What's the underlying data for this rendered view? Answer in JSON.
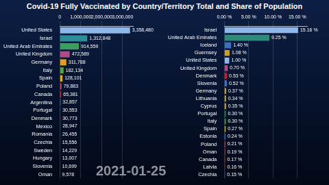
{
  "title": "Covid-19 Fully Vaccinated by Country/Territory Total and Share of Population",
  "annotation": "2021-01-25",
  "chart_data": [
    {
      "type": "bar",
      "orientation": "horizontal",
      "grid": true,
      "data_labels": true,
      "categories": [
        "United States",
        "Israel",
        "United Arab Emirates",
        "United Kingdom",
        "Germany",
        "Italy",
        "Spain",
        "Poland",
        "Canada",
        "Argentina",
        "Portugal",
        "Denmark",
        "Mexico",
        "Romania",
        "Czechia",
        "Sweden",
        "Hungary",
        "Slovenia",
        "Oman"
      ],
      "values": [
        3358480,
        1312848,
        914559,
        472589,
        311788,
        182134,
        128101,
        79883,
        65381,
        32857,
        30553,
        30773,
        28947,
        26455,
        15556,
        14229,
        13007,
        10699,
        9578
      ],
      "value_labels": [
        "3,358,480",
        "1,312,848",
        "914,559",
        "472,589",
        "311,788",
        "182,134",
        "128,101",
        "79,883",
        "65,381",
        "32,857",
        "30,553",
        "30,773",
        "28,947",
        "26,455",
        "15,556",
        "14,229",
        "13,007",
        "10,699",
        "9,578"
      ],
      "colors": [
        "#8fb8e8",
        "#2e8b9a",
        "#3a9e5f",
        "#b04a8a",
        "#e0a020",
        "#5aa040",
        "#d8b020",
        "#d04050",
        "#c03030",
        "#70b0e0",
        "#308040",
        "#c02040",
        "#208050",
        "#3050a0",
        "#4060b0",
        "#3070c0",
        "#60a040",
        "#4070c0",
        "#c03040"
      ],
      "xlim": [
        0,
        3500000
      ],
      "xticks": [
        0,
        {
          "value": 1000000,
          "label": "1,000,000"
        },
        {
          "value": 2000000,
          "label": "2,000,000"
        },
        {
          "value": 3000000,
          "label": "3,000,000"
        }
      ]
    },
    {
      "type": "bar",
      "orientation": "horizontal",
      "grid": true,
      "data_labels": true,
      "categories": [
        "Israel",
        "United Arab Emirates",
        "Iceland",
        "Guernsey",
        "United States",
        "United Kingdom",
        "Denmark",
        "Slovenia",
        "Germany",
        "Lithuania",
        "Cyprus",
        "Portugal",
        "Italy",
        "Spain",
        "Estonia",
        "Poland",
        "Oman",
        "Canada",
        "Latvia",
        "Czechia"
      ],
      "values": [
        15.16,
        9.25,
        1.4,
        1.08,
        1.0,
        0.7,
        0.53,
        0.52,
        0.37,
        0.34,
        0.35,
        0.3,
        0.3,
        0.27,
        0.24,
        0.21,
        0.19,
        0.17,
        0.16,
        0.15
      ],
      "value_labels": [
        "15.16 %",
        "9.25 %",
        "1.40 %",
        "1.08 %",
        "1.00 %",
        "0.70 %",
        "0.53 %",
        "0.52 %",
        "0.37 %",
        "0.34 %",
        "0.35 %",
        "0.30 %",
        "0.30 %",
        "0.27 %",
        "0.24 %",
        "0.21 %",
        "0.19 %",
        "0.17 %",
        "0.16 %",
        "0.15 %"
      ],
      "colors": [
        "#8fb8e8",
        "#2e8b7a",
        "#3a6fc0",
        "#c8a030",
        "#8fb8e8",
        "#b04a8a",
        "#c02040",
        "#4070c0",
        "#e0a020",
        "#d8b020",
        "#e0a040",
        "#308040",
        "#5aa040",
        "#d8b020",
        "#3070c0",
        "#d04050",
        "#c03040",
        "#c03030",
        "#902030",
        "#4060b0"
      ],
      "xlim": [
        0,
        17
      ],
      "xticks": [
        {
          "value": 0,
          "label": "0.00 %"
        },
        {
          "value": 5,
          "label": "5.00 %"
        },
        {
          "value": 10,
          "label": "10.00 %"
        },
        {
          "value": 15,
          "label": "15.00 %"
        }
      ]
    }
  ]
}
